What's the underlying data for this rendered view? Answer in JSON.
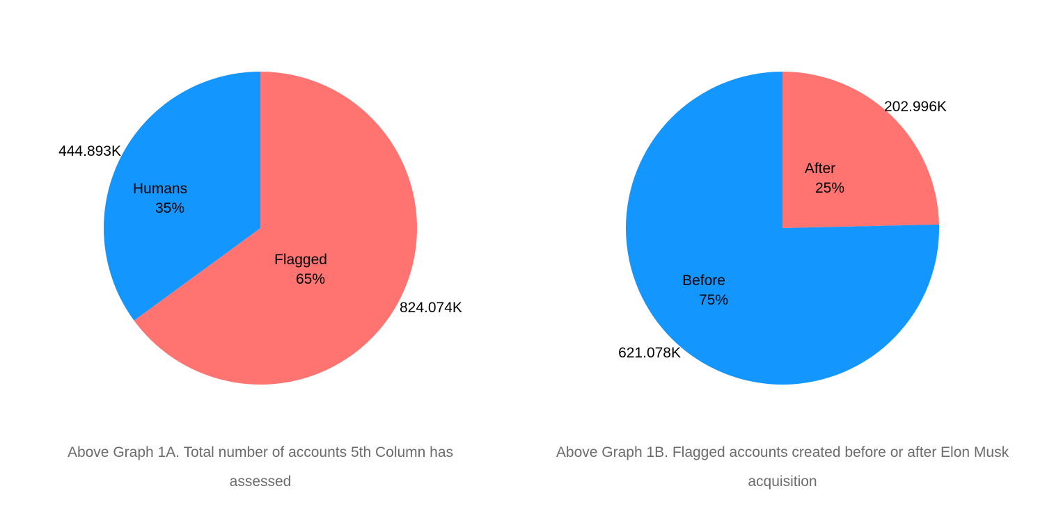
{
  "chart_data": [
    {
      "type": "pie",
      "id": "graph-1a",
      "caption": "Above Graph 1A. Total number of accounts 5th Column has assessed",
      "slices": [
        {
          "name": "Flagged",
          "value": 824074,
          "value_label": "824.074K",
          "percent_label": "65%",
          "color": "#FF7471"
        },
        {
          "name": "Humans",
          "value": 444893,
          "value_label": "444.893K",
          "percent_label": "35%",
          "color": "#1496FF"
        }
      ]
    },
    {
      "type": "pie",
      "id": "graph-1b",
      "caption": "Above Graph 1B. Flagged accounts created before or after Elon Musk acquisition",
      "slices": [
        {
          "name": "After",
          "value": 202996,
          "value_label": "202.996K",
          "percent_label": "25%",
          "color": "#FF7471"
        },
        {
          "name": "Before",
          "value": 621078,
          "value_label": "621.078K",
          "percent_label": "75%",
          "color": "#1496FF"
        }
      ]
    }
  ]
}
